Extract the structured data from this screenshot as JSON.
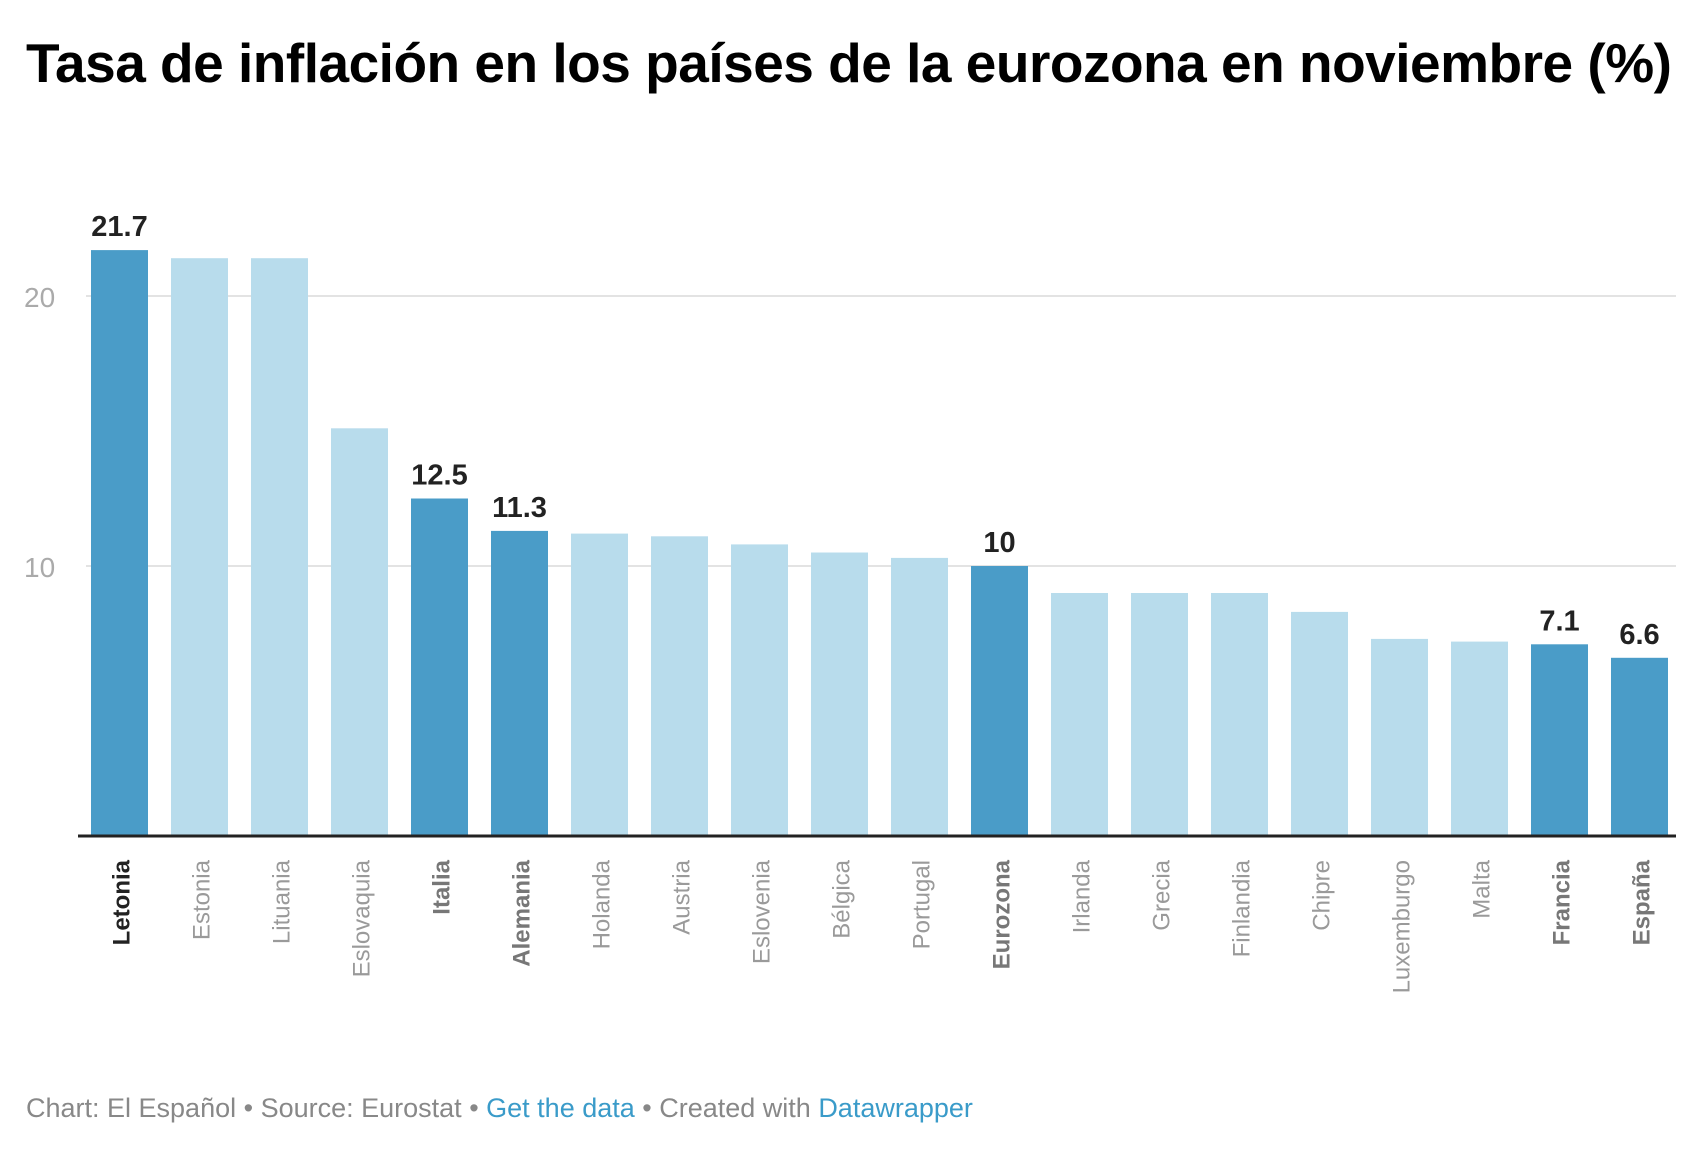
{
  "chart_data": {
    "type": "bar",
    "title": "Tasa de inflación en los países de la eurozona en noviembre (%)",
    "categories": [
      "Letonia",
      "Estonia",
      "Lituania",
      "Eslovaquia",
      "Italia",
      "Alemania",
      "Holanda",
      "Austria",
      "Eslovenia",
      "Bélgica",
      "Portugal",
      "Eurozona",
      "Irlanda",
      "Grecia",
      "Finlandia",
      "Chipre",
      "Luxemburgo",
      "Malta",
      "Francia",
      "España"
    ],
    "values": [
      21.7,
      21.4,
      21.4,
      15.1,
      12.5,
      11.3,
      11.2,
      11.1,
      10.8,
      10.5,
      10.3,
      10,
      9.0,
      9.0,
      9.0,
      8.3,
      7.3,
      7.2,
      7.1,
      6.6
    ],
    "highlighted": [
      "Letonia",
      "Italia",
      "Alemania",
      "Eurozona",
      "Francia",
      "España"
    ],
    "data_labels": {
      "Letonia": "21.7",
      "Italia": "12.5",
      "Alemania": "11.3",
      "Eurozona": "10",
      "Francia": "7.1",
      "España": "6.6"
    },
    "yticks": [
      10,
      20
    ],
    "ylim": [
      0,
      24
    ],
    "grid": true,
    "colors": {
      "highlight": "#4a9cc8",
      "default": "#b8dcec",
      "grid": "#e3e3e3",
      "axis": "#222222",
      "tick_label": "#aaaaaa",
      "muted_label": "#9a9a9a"
    },
    "xlabel": "",
    "ylabel": ""
  },
  "footer": {
    "chart_by": "Chart: El Español",
    "sep1": " • ",
    "source": "Source: Eurostat",
    "sep2": " • ",
    "get_data": "Get the data",
    "sep3": " • ",
    "created_with": "Created with ",
    "datawrapper": "Datawrapper"
  }
}
